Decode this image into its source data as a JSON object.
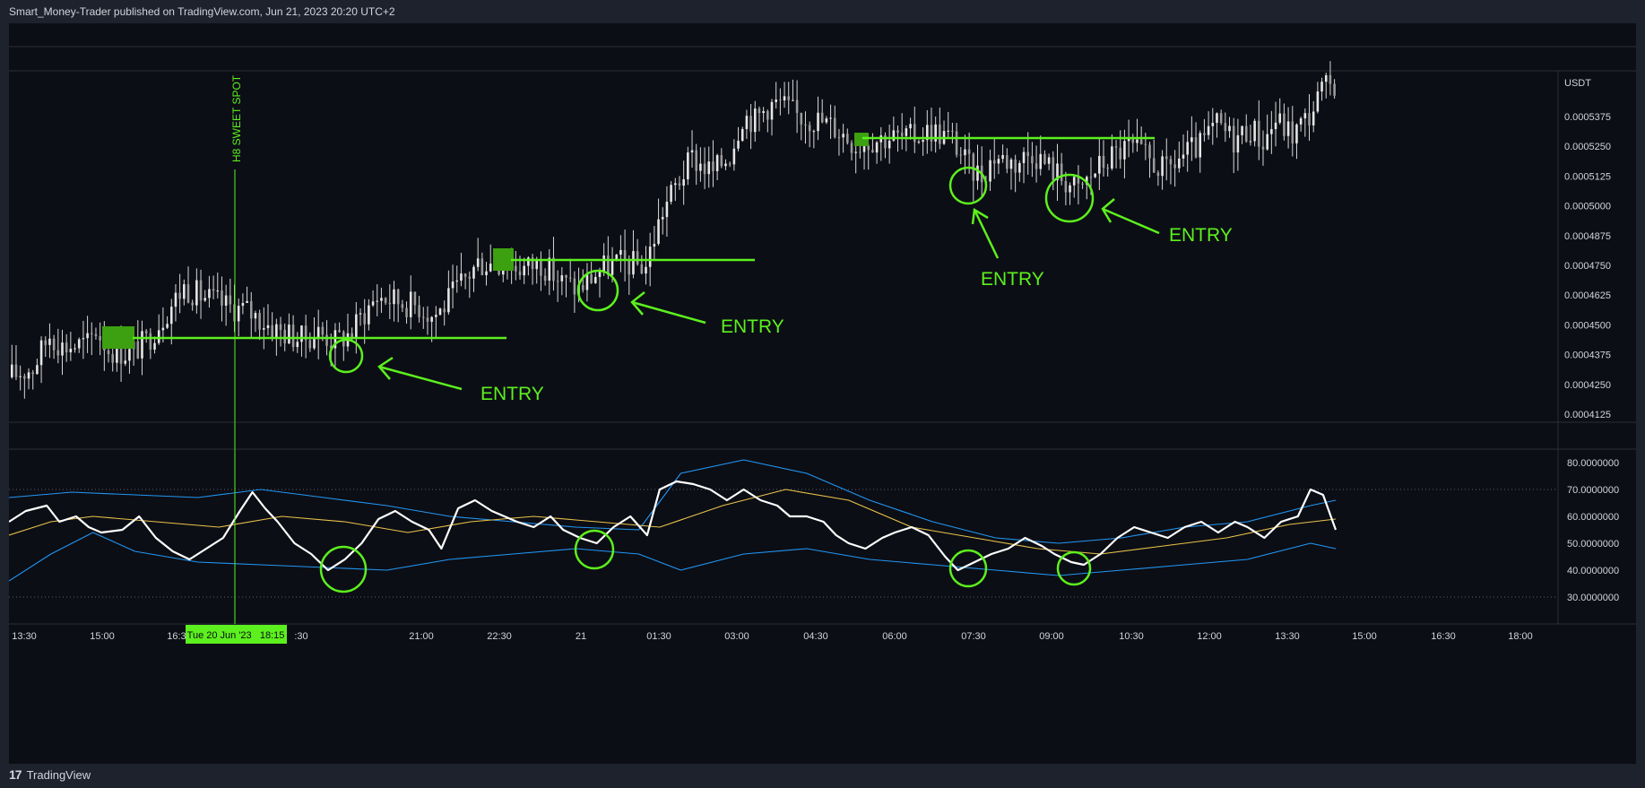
{
  "header": {
    "published": "Smart_Money-Trader published on TradingView.com, Jun 21, 2023 20:20 UTC+2"
  },
  "footer": {
    "brand": "TradingView",
    "logo_icon": "tradingview-logo-icon"
  },
  "colors": {
    "background": "#0c0e15",
    "frame": "#1e222d",
    "annotation": "#5cf01e",
    "rsi": "#ffffff",
    "bb": "#2196f3",
    "ma": "#e8c24a",
    "candle": "#d8d8d8"
  },
  "chart_data": [
    {
      "type": "candlestick",
      "title": "",
      "currency": "USDT",
      "y_ticks": [
        "0.0005375",
        "0.0005250",
        "0.0005125",
        "0.0005000",
        "0.0004875",
        "0.0004750",
        "0.0004625",
        "0.0004500",
        "0.0004375",
        "0.0004250",
        "0.0004125"
      ],
      "x_ticks": [
        "13:30",
        "15:00",
        "16:30",
        "",
        "",
        "21:00",
        "22:30",
        "21",
        "01:30",
        "03:00",
        "04:30",
        "06:00",
        "07:30",
        "09:00",
        "10:30",
        "12:00",
        "13:30",
        "15:00",
        "16:30",
        "18:00"
      ],
      "ylim": [
        0.00041,
        0.000555
      ],
      "price_path": [
        [
          0,
          0.000428
        ],
        [
          6,
          0.000432
        ],
        [
          10,
          0.000446
        ],
        [
          13,
          0.000441
        ],
        [
          19,
          0.000442
        ],
        [
          21,
          0.000448
        ],
        [
          24,
          0.00044
        ],
        [
          29,
          0.000438
        ],
        [
          33,
          0.000443
        ],
        [
          38,
          0.000456
        ],
        [
          42,
          0.000466
        ],
        [
          45,
          0.000463
        ],
        [
          52,
          0.000458
        ],
        [
          57,
          0.000456
        ],
        [
          64,
          0.000448
        ],
        [
          70,
          0.000444
        ],
        [
          74,
          0.000447
        ],
        [
          78,
          0.000443
        ],
        [
          82,
          0.000447
        ],
        [
          84,
          0.000453
        ],
        [
          88,
          0.000462
        ],
        [
          93,
          0.00046
        ],
        [
          98,
          0.000458
        ],
        [
          101,
          0.000454
        ],
        [
          103,
          0.000456
        ],
        [
          107,
          0.000465
        ],
        [
          112,
          0.000476
        ],
        [
          118,
          0.000476
        ],
        [
          123,
          0.000474
        ],
        [
          127,
          0.000476
        ],
        [
          132,
          0.000468
        ],
        [
          136,
          0.000465
        ],
        [
          139,
          0.00047
        ],
        [
          142,
          0.000474
        ],
        [
          145,
          0.000476
        ],
        [
          152,
          0.000475
        ],
        [
          154,
          0.000487
        ],
        [
          156,
          0.000498
        ],
        [
          159,
          0.000508
        ],
        [
          163,
          0.00052
        ],
        [
          168,
          0.000514
        ],
        [
          172,
          0.000522
        ],
        [
          175,
          0.000538
        ],
        [
          178,
          0.000536
        ],
        [
          181,
          0.000542
        ],
        [
          184,
          0.000543
        ],
        [
          188,
          0.000538
        ],
        [
          193,
          0.000536
        ],
        [
          197,
          0.000533
        ],
        [
          202,
          0.000526
        ],
        [
          206,
          0.000528
        ],
        [
          210,
          0.000529
        ],
        [
          214,
          0.000528
        ],
        [
          220,
          0.000532
        ],
        [
          225,
          0.000528
        ],
        [
          229,
          0.000516
        ],
        [
          232,
          0.000513
        ],
        [
          235,
          0.000521
        ],
        [
          240,
          0.000518
        ],
        [
          244,
          0.000523
        ],
        [
          247,
          0.000518
        ],
        [
          251,
          0.000512
        ],
        [
          255,
          0.000506
        ],
        [
          259,
          0.000515
        ],
        [
          263,
          0.000521
        ],
        [
          267,
          0.000525
        ],
        [
          272,
          0.000519
        ],
        [
          276,
          0.000514
        ],
        [
          279,
          0.00052
        ],
        [
          284,
          0.000525
        ],
        [
          288,
          0.000534
        ],
        [
          292,
          0.000528
        ],
        [
          296,
          0.000533
        ],
        [
          299,
          0.000527
        ],
        [
          302,
          0.000536
        ],
        [
          306,
          0.00053
        ],
        [
          310,
          0.000538
        ],
        [
          313,
          0.000548
        ],
        [
          316,
          0.000552
        ]
      ],
      "demand_levels": [
        0.000444,
        0.000476,
        0.0005285
      ],
      "annotations": [
        "ENTRY",
        "ENTRY",
        "ENTRY",
        "ENTRY",
        "H8 SWEET SPOT"
      ]
    },
    {
      "type": "line",
      "title": "",
      "y_ticks": [
        "80.0000000",
        "70.0000000",
        "60.0000000",
        "50.0000000",
        "40.0000000",
        "30.0000000"
      ],
      "ylim": [
        26,
        84
      ],
      "levels": [
        70,
        30
      ],
      "series": [
        {
          "role": "rsi",
          "values": [
            [
              0,
              58
            ],
            [
              4,
              62
            ],
            [
              9,
              64
            ],
            [
              12,
              58
            ],
            [
              16,
              60
            ],
            [
              19,
              56
            ],
            [
              22,
              54
            ],
            [
              27,
              55
            ],
            [
              31,
              60
            ],
            [
              35,
              52
            ],
            [
              39,
              47
            ],
            [
              43,
              44
            ],
            [
              47,
              48
            ],
            [
              51,
              52
            ],
            [
              55,
              62
            ],
            [
              58,
              69
            ],
            [
              61,
              63
            ],
            [
              64,
              58
            ],
            [
              68,
              50
            ],
            [
              72,
              46
            ],
            [
              76,
              40
            ],
            [
              80,
              44
            ],
            [
              84,
              50
            ],
            [
              88,
              59
            ],
            [
              92,
              62
            ],
            [
              96,
              58
            ],
            [
              100,
              55
            ],
            [
              103,
              48
            ],
            [
              107,
              63
            ],
            [
              111,
              66
            ],
            [
              115,
              62
            ],
            [
              118,
              60
            ],
            [
              121,
              58
            ],
            [
              125,
              56
            ],
            [
              129,
              60
            ],
            [
              132,
              55
            ],
            [
              136,
              52
            ],
            [
              140,
              50
            ],
            [
              144,
              56
            ],
            [
              148,
              60
            ],
            [
              152,
              53
            ],
            [
              155,
              70
            ],
            [
              159,
              73
            ],
            [
              163,
              72
            ],
            [
              167,
              70
            ],
            [
              171,
              66
            ],
            [
              175,
              70
            ],
            [
              179,
              66
            ],
            [
              183,
              64
            ],
            [
              186,
              60
            ],
            [
              190,
              60
            ],
            [
              194,
              58
            ],
            [
              197,
              53
            ],
            [
              200,
              50
            ],
            [
              204,
              48
            ],
            [
              208,
              52
            ],
            [
              211,
              54
            ],
            [
              215,
              56
            ],
            [
              219,
              53
            ],
            [
              223,
              45
            ],
            [
              226,
              40
            ],
            [
              230,
              43
            ],
            [
              234,
              46
            ],
            [
              238,
              48
            ],
            [
              242,
              52
            ],
            [
              246,
              49
            ],
            [
              249,
              46
            ],
            [
              253,
              43
            ],
            [
              256,
              42
            ],
            [
              260,
              46
            ],
            [
              264,
              52
            ],
            [
              268,
              56
            ],
            [
              272,
              54
            ],
            [
              276,
              52
            ],
            [
              280,
              56
            ],
            [
              284,
              58
            ],
            [
              288,
              54
            ],
            [
              292,
              58
            ],
            [
              295,
              56
            ],
            [
              299,
              52
            ],
            [
              303,
              58
            ],
            [
              307,
              60
            ],
            [
              310,
              70
            ],
            [
              313,
              68
            ],
            [
              316,
              55
            ]
          ]
        },
        {
          "role": "bb_upper",
          "values": [
            [
              0,
              67
            ],
            [
              15,
              69
            ],
            [
              30,
              68
            ],
            [
              45,
              67
            ],
            [
              60,
              70
            ],
            [
              75,
              67
            ],
            [
              90,
              64
            ],
            [
              105,
              60
            ],
            [
              120,
              58
            ],
            [
              135,
              56
            ],
            [
              150,
              55
            ],
            [
              160,
              76
            ],
            [
              175,
              81
            ],
            [
              190,
              76
            ],
            [
              205,
              66
            ],
            [
              220,
              58
            ],
            [
              235,
              52
            ],
            [
              250,
              50
            ],
            [
              265,
              52
            ],
            [
              280,
              56
            ],
            [
              295,
              58
            ],
            [
              310,
              64
            ],
            [
              316,
              66
            ]
          ]
        },
        {
          "role": "bb_lower",
          "values": [
            [
              0,
              36
            ],
            [
              10,
              46
            ],
            [
              20,
              54
            ],
            [
              30,
              47
            ],
            [
              45,
              43
            ],
            [
              60,
              42
            ],
            [
              75,
              41
            ],
            [
              90,
              40
            ],
            [
              105,
              44
            ],
            [
              120,
              46
            ],
            [
              135,
              48
            ],
            [
              150,
              46
            ],
            [
              160,
              40
            ],
            [
              175,
              46
            ],
            [
              190,
              48
            ],
            [
              205,
              44
            ],
            [
              220,
              42
            ],
            [
              235,
              40
            ],
            [
              250,
              38
            ],
            [
              265,
              40
            ],
            [
              280,
              42
            ],
            [
              295,
              44
            ],
            [
              310,
              50
            ],
            [
              316,
              48
            ]
          ]
        },
        {
          "role": "ma",
          "values": [
            [
              0,
              53
            ],
            [
              10,
              58
            ],
            [
              20,
              60
            ],
            [
              35,
              58
            ],
            [
              50,
              56
            ],
            [
              65,
              60
            ],
            [
              80,
              58
            ],
            [
              95,
              54
            ],
            [
              110,
              58
            ],
            [
              125,
              60
            ],
            [
              140,
              58
            ],
            [
              155,
              56
            ],
            [
              170,
              64
            ],
            [
              185,
              70
            ],
            [
              200,
              66
            ],
            [
              215,
              56
            ],
            [
              230,
              52
            ],
            [
              245,
              48
            ],
            [
              260,
              46
            ],
            [
              275,
              49
            ],
            [
              290,
              52
            ],
            [
              305,
              57
            ],
            [
              316,
              59
            ]
          ]
        }
      ]
    }
  ],
  "crosshair": {
    "label": "Tue 20 Jun '23   18:15"
  }
}
